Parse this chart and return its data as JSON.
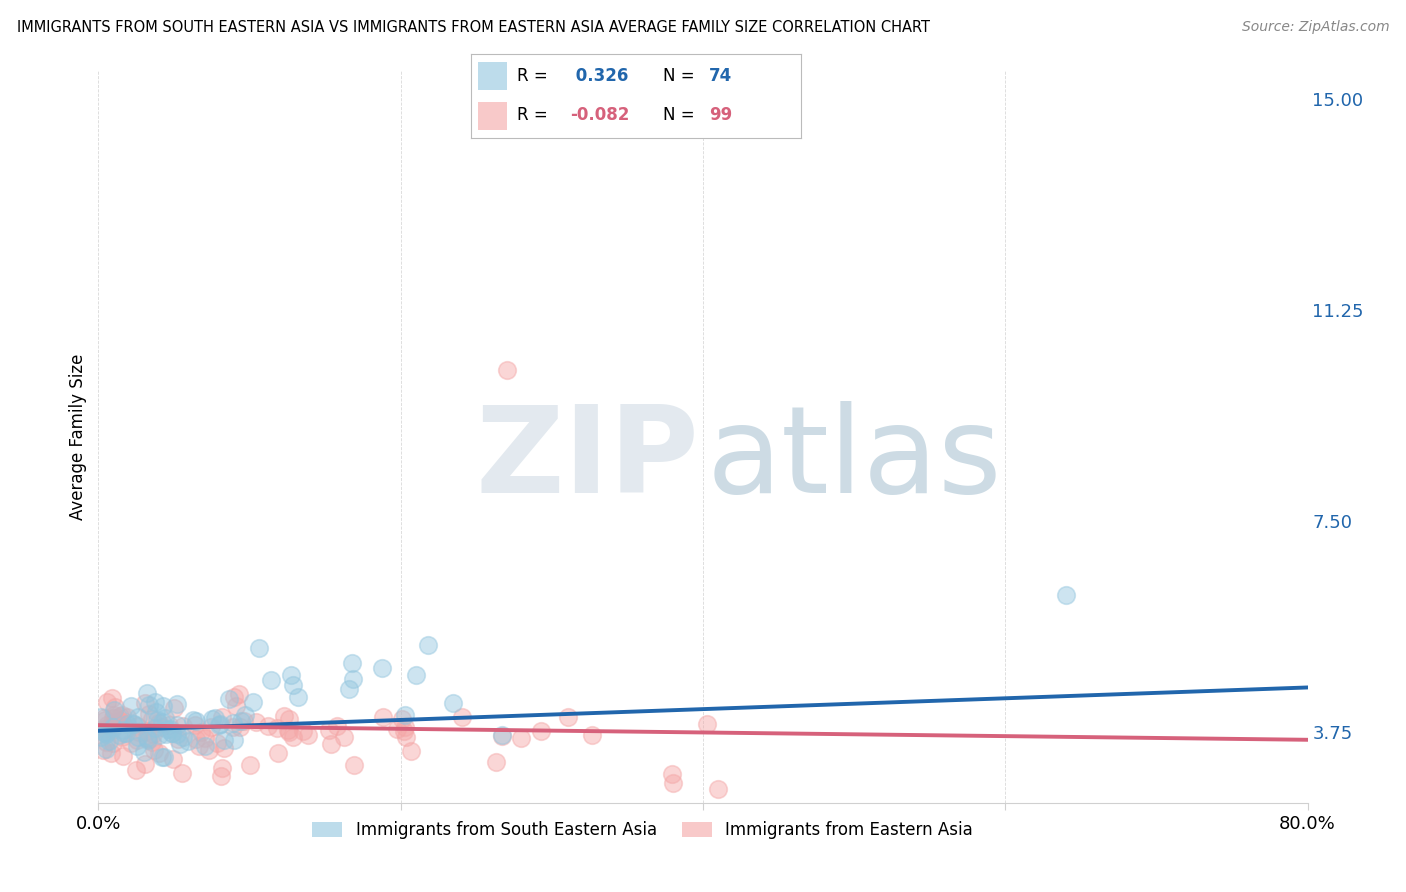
{
  "title": "IMMIGRANTS FROM SOUTH EASTERN ASIA VS IMMIGRANTS FROM EASTERN ASIA AVERAGE FAMILY SIZE CORRELATION CHART",
  "source": "Source: ZipAtlas.com",
  "ylabel": "Average Family Size",
  "yticks_right": [
    3.75,
    7.5,
    11.25,
    15.0
  ],
  "blue_R": 0.326,
  "blue_N": 74,
  "pink_R": -0.082,
  "pink_N": 99,
  "blue_color": "#92c5de",
  "pink_color": "#f4a6a6",
  "blue_edge_color": "#92c5de",
  "pink_edge_color": "#f4a6a6",
  "blue_line_color": "#2166ac",
  "pink_line_color": "#d6617b",
  "grid_color": "#d0d0d0",
  "legend_blue_label": "Immigrants from South Eastern Asia",
  "legend_pink_label": "Immigrants from Eastern Asia",
  "xmin": 0.0,
  "xmax": 0.8,
  "ymin": 2.5,
  "ymax": 15.5,
  "blue_line_y0": 3.78,
  "blue_line_y1": 4.55,
  "pink_line_y0": 3.88,
  "pink_line_y1": 3.62,
  "seed": 7
}
